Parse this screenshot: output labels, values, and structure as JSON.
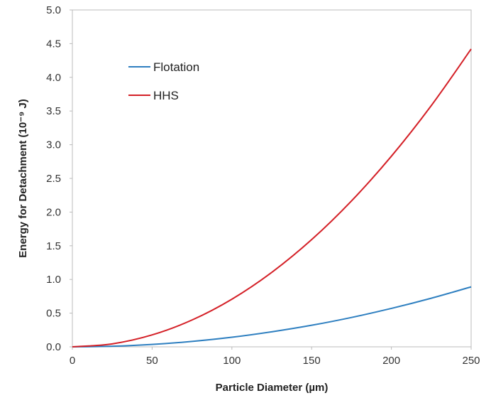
{
  "chart_data": {
    "type": "line",
    "title": "",
    "xlabel": "Particle Diameter (µm)",
    "ylabel": "Energy for Detachment (10⁻⁹ J)",
    "xlim": [
      0,
      250
    ],
    "ylim": [
      0,
      5.0
    ],
    "xticks": [
      "0",
      "50",
      "100",
      "150",
      "200",
      "250"
    ],
    "yticks": [
      "0.0",
      "0.5",
      "1.0",
      "1.5",
      "2.0",
      "2.5",
      "3.0",
      "3.5",
      "4.0",
      "4.5",
      "5.0"
    ],
    "grid": false,
    "legend_position": "top-left",
    "x": [
      0,
      25,
      50,
      75,
      100,
      125,
      150,
      175,
      200,
      225,
      250
    ],
    "series": [
      {
        "name": "Flotation",
        "color": "#2e7fc0",
        "values": [
          0,
          0.009,
          0.036,
          0.08,
          0.142,
          0.223,
          0.32,
          0.436,
          0.57,
          0.721,
          0.89
        ]
      },
      {
        "name": "HHS",
        "color": "#d42027",
        "values": [
          0,
          0.044,
          0.177,
          0.398,
          0.707,
          1.105,
          1.591,
          2.166,
          2.829,
          3.58,
          4.42
        ]
      }
    ]
  }
}
